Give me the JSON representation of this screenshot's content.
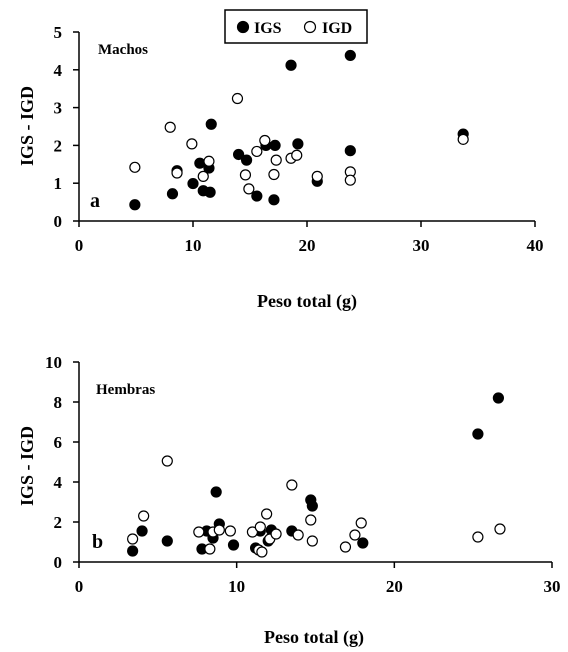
{
  "legend": {
    "items": [
      {
        "label": "IGS",
        "marker": "filled"
      },
      {
        "label": "IGD",
        "marker": "open"
      }
    ]
  },
  "chart_data": [
    {
      "type": "scatter",
      "panel_letter": "a",
      "annotation": "Machos",
      "xlabel": "Peso total (g)",
      "ylabel": "IGS - IGD",
      "xlim": [
        0,
        40
      ],
      "ylim": [
        0,
        5
      ],
      "xticks": [
        0,
        10,
        20,
        30,
        40
      ],
      "yticks": [
        0,
        1,
        2,
        3,
        4,
        5
      ],
      "series": [
        {
          "name": "IGS",
          "marker": "filled",
          "points": [
            [
              4.9,
              0.43
            ],
            [
              8.2,
              0.72
            ],
            [
              8.6,
              1.33
            ],
            [
              10.0,
              0.99
            ],
            [
              10.6,
              1.53
            ],
            [
              10.9,
              0.8
            ],
            [
              11.4,
              1.4
            ],
            [
              11.5,
              0.76
            ],
            [
              11.6,
              2.56
            ],
            [
              14.0,
              1.76
            ],
            [
              14.7,
              1.61
            ],
            [
              15.6,
              0.66
            ],
            [
              16.4,
              2.0
            ],
            [
              17.1,
              0.56
            ],
            [
              17.2,
              2.0
            ],
            [
              18.6,
              4.12
            ],
            [
              19.2,
              2.04
            ],
            [
              20.9,
              1.05
            ],
            [
              23.8,
              1.86
            ],
            [
              23.8,
              4.38
            ],
            [
              33.7,
              2.3
            ]
          ]
        },
        {
          "name": "IGD",
          "marker": "open",
          "points": [
            [
              4.9,
              1.42
            ],
            [
              8.0,
              2.48
            ],
            [
              8.6,
              1.27
            ],
            [
              9.9,
              2.04
            ],
            [
              10.9,
              1.18
            ],
            [
              11.4,
              1.58
            ],
            [
              13.9,
              3.24
            ],
            [
              14.6,
              1.22
            ],
            [
              14.9,
              0.85
            ],
            [
              15.6,
              1.84
            ],
            [
              16.3,
              2.13
            ],
            [
              17.1,
              1.23
            ],
            [
              17.3,
              1.61
            ],
            [
              18.6,
              1.66
            ],
            [
              19.1,
              1.74
            ],
            [
              20.9,
              1.18
            ],
            [
              23.8,
              1.3
            ],
            [
              23.8,
              1.08
            ],
            [
              33.7,
              2.16
            ]
          ]
        }
      ]
    },
    {
      "type": "scatter",
      "panel_letter": "b",
      "annotation": "Hembras",
      "xlabel": "Peso total (g)",
      "ylabel": "IGS - IGD",
      "xlim": [
        0,
        30
      ],
      "ylim": [
        0,
        10
      ],
      "xticks": [
        0,
        10,
        20,
        30
      ],
      "yticks": [
        0,
        2,
        4,
        6,
        8,
        10
      ],
      "series": [
        {
          "name": "IGS",
          "marker": "filled",
          "points": [
            [
              3.4,
              0.55
            ],
            [
              4.0,
              1.55
            ],
            [
              5.6,
              1.05
            ],
            [
              7.8,
              0.65
            ],
            [
              8.1,
              1.55
            ],
            [
              8.5,
              1.2
            ],
            [
              8.7,
              3.5
            ],
            [
              8.9,
              1.9
            ],
            [
              9.8,
              0.85
            ],
            [
              11.2,
              0.7
            ],
            [
              11.5,
              1.55
            ],
            [
              12.0,
              1.05
            ],
            [
              12.2,
              1.6
            ],
            [
              13.5,
              1.55
            ],
            [
              14.7,
              3.1
            ],
            [
              14.8,
              2.8
            ],
            [
              18.0,
              0.95
            ],
            [
              25.3,
              6.4
            ],
            [
              26.6,
              8.2
            ]
          ]
        },
        {
          "name": "IGD",
          "marker": "open",
          "points": [
            [
              3.4,
              1.15
            ],
            [
              4.1,
              2.3
            ],
            [
              5.6,
              5.05
            ],
            [
              7.6,
              1.5
            ],
            [
              8.3,
              0.65
            ],
            [
              8.5,
              1.5
            ],
            [
              8.9,
              1.6
            ],
            [
              9.6,
              1.55
            ],
            [
              11.0,
              1.5
            ],
            [
              11.4,
              0.6
            ],
            [
              11.5,
              1.75
            ],
            [
              11.6,
              0.5
            ],
            [
              11.9,
              2.4
            ],
            [
              12.1,
              1.15
            ],
            [
              12.5,
              1.4
            ],
            [
              13.5,
              3.85
            ],
            [
              13.9,
              1.35
            ],
            [
              14.7,
              2.1
            ],
            [
              14.8,
              1.05
            ],
            [
              16.9,
              0.75
            ],
            [
              17.5,
              1.35
            ],
            [
              17.9,
              1.95
            ],
            [
              25.3,
              1.25
            ],
            [
              26.7,
              1.65
            ]
          ]
        }
      ]
    }
  ]
}
